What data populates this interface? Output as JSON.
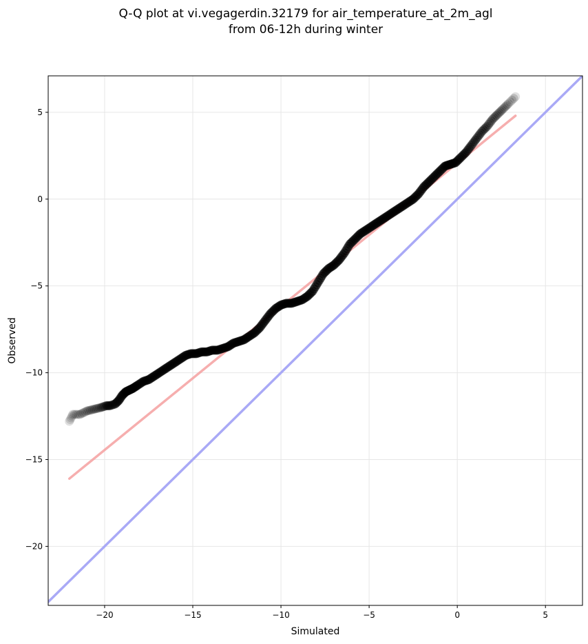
{
  "chart_data": {
    "type": "scatter",
    "title_line1": "Q-Q plot at vi.vegagerdin.32179 for air_temperature_at_2m_agl",
    "title_line2": "from 06-12h during winter",
    "xlabel": "Simulated",
    "ylabel": "Observed",
    "xlim": [
      -23.2,
      7.1
    ],
    "ylim": [
      -23.4,
      7.1
    ],
    "xticks": [
      -20,
      -15,
      -10,
      -5,
      0,
      5
    ],
    "yticks": [
      -20,
      -15,
      -10,
      -5,
      0,
      5
    ],
    "xtick_labels": [
      "−20",
      "−15",
      "−10",
      "−5",
      "0",
      "5"
    ],
    "ytick_labels": [
      "−20",
      "−15",
      "−10",
      "−5",
      "0",
      "5"
    ],
    "grid": true,
    "colors": {
      "points": "#000000",
      "fit_line": "#f4a0a0",
      "identity_line": "#a9a9f6",
      "grid": "#e6e6e6"
    },
    "fit_line": {
      "x": [
        -22.0,
        3.3
      ],
      "y": [
        -16.1,
        4.8
      ]
    },
    "identity_line": {
      "x": [
        -23.2,
        7.1
      ],
      "y": [
        -23.2,
        7.1
      ]
    },
    "points_x": [
      -22.0,
      -21.8,
      -21.4,
      -21.0,
      -20.6,
      -20.2,
      -19.9,
      -19.7,
      -19.4,
      -19.2,
      -19.0,
      -18.8,
      -18.6,
      -18.4,
      -18.1,
      -17.8,
      -17.5,
      -17.2,
      -16.9,
      -16.6,
      -16.3,
      -16.0,
      -15.7,
      -15.4,
      -15.1,
      -14.8,
      -14.5,
      -14.2,
      -13.9,
      -13.6,
      -13.3,
      -13.0,
      -12.7,
      -12.4,
      -12.1,
      -11.8,
      -11.5,
      -11.2,
      -10.9,
      -10.6,
      -10.3,
      -10.0,
      -9.7,
      -9.4,
      -9.1,
      -8.8,
      -8.5,
      -8.2,
      -7.9,
      -7.6,
      -7.3,
      -7.0,
      -6.7,
      -6.4,
      -6.1,
      -5.8,
      -5.5,
      -5.2,
      -4.9,
      -4.6,
      -4.3,
      -4.0,
      -3.7,
      -3.4,
      -3.1,
      -2.8,
      -2.5,
      -2.2,
      -1.9,
      -1.6,
      -1.3,
      -1.0,
      -0.7,
      -0.4,
      -0.1,
      0.2,
      0.5,
      0.8,
      1.1,
      1.4,
      1.7,
      2.0,
      2.3,
      2.6,
      2.9,
      3.3
    ],
    "points_y": [
      -12.8,
      -12.4,
      -12.4,
      -12.2,
      -12.1,
      -12.0,
      -11.9,
      -11.9,
      -11.8,
      -11.6,
      -11.3,
      -11.1,
      -11.0,
      -10.9,
      -10.7,
      -10.5,
      -10.4,
      -10.2,
      -10.0,
      -9.8,
      -9.6,
      -9.4,
      -9.2,
      -9.0,
      -8.9,
      -8.9,
      -8.8,
      -8.8,
      -8.7,
      -8.7,
      -8.6,
      -8.5,
      -8.3,
      -8.2,
      -8.1,
      -7.9,
      -7.7,
      -7.4,
      -7.0,
      -6.6,
      -6.3,
      -6.1,
      -6.0,
      -6.0,
      -5.9,
      -5.8,
      -5.6,
      -5.3,
      -4.8,
      -4.3,
      -4.0,
      -3.8,
      -3.5,
      -3.1,
      -2.6,
      -2.3,
      -2.0,
      -1.8,
      -1.6,
      -1.4,
      -1.2,
      -1.0,
      -0.8,
      -0.6,
      -0.4,
      -0.2,
      0.0,
      0.3,
      0.7,
      1.0,
      1.3,
      1.6,
      1.9,
      2.0,
      2.1,
      2.4,
      2.7,
      3.1,
      3.5,
      3.9,
      4.2,
      4.6,
      4.9,
      5.2,
      5.5,
      5.9
    ]
  }
}
